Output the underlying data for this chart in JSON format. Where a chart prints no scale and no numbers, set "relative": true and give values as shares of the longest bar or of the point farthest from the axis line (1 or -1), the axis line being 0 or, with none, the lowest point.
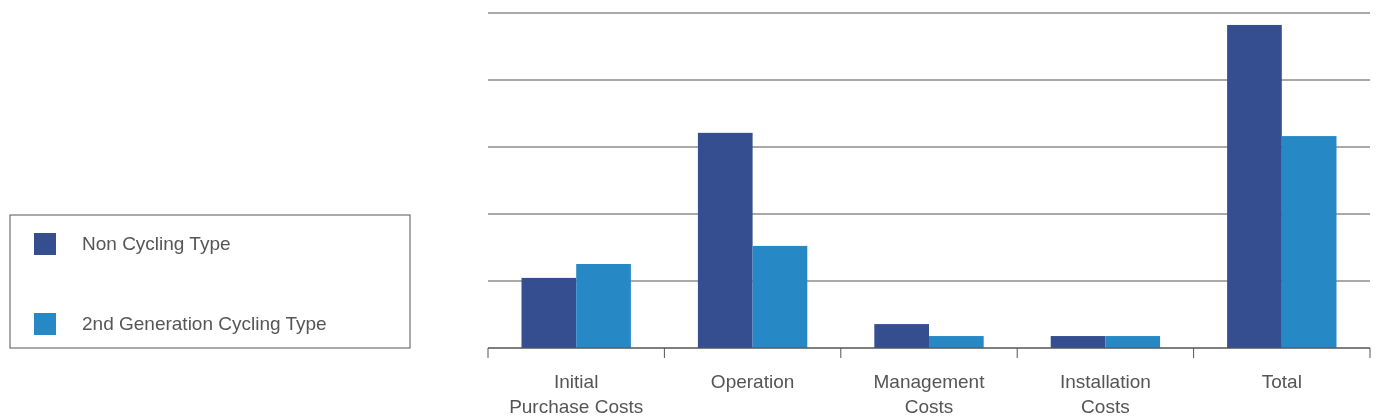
{
  "chart_data": {
    "type": "bar",
    "relative": true,
    "grid": true,
    "legend": "left",
    "categories": [
      "Initial Purchase Costs",
      "Operation",
      "Management Costs",
      "Installation Costs",
      "Total"
    ],
    "series": [
      {
        "name": "Non Cycling Type",
        "color": "#344e8f",
        "values": [
          0.217,
          0.666,
          0.074,
          0.037,
          1
        ]
      },
      {
        "name": "2nd Generation Cycling Type",
        "color": "#2689c6",
        "values": [
          0.26,
          0.316,
          0.037,
          0.037,
          0.656
        ]
      }
    ]
  }
}
